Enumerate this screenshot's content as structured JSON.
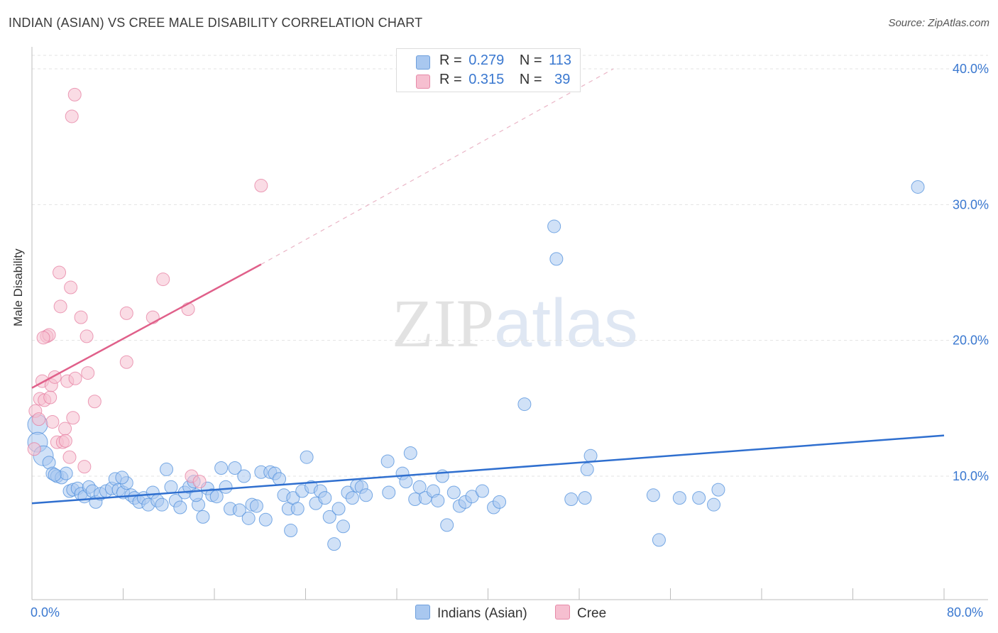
{
  "title": "INDIAN (ASIAN) VS CREE MALE DISABILITY CORRELATION CHART",
  "source": "Source: ZipAtlas.com",
  "watermark": {
    "zip": "ZIP",
    "atlas": "atlas"
  },
  "legend": {
    "rows": [
      {
        "r_label": "R =",
        "r_value": "0.279",
        "n_label": "N =",
        "n_value": "113",
        "color": "#a9c8f0"
      },
      {
        "r_label": "R =",
        "r_value": "0.315",
        "n_label": "N =",
        "n_value": "39",
        "color": "#f6bfd0"
      }
    ]
  },
  "bottom_legend": [
    {
      "label": "Indians (Asian)",
      "color": "#a9c8f0"
    },
    {
      "label": "Cree",
      "color": "#f6bfd0"
    }
  ],
  "x_axis": {
    "min_label": "0.0%",
    "max_label": "80.0%"
  },
  "chart_data": {
    "type": "scatter",
    "title": "INDIAN (ASIAN) VS CREE MALE DISABILITY CORRELATION CHART",
    "xlabel": "",
    "ylabel": "Male Disability",
    "xlim": [
      0,
      80
    ],
    "ylim": [
      0,
      42
    ],
    "y_ticks": [
      10,
      20,
      30,
      40
    ],
    "y_tick_labels": [
      "10.0%",
      "20.0%",
      "30.0%",
      "40.0%"
    ],
    "x_tick_labels": [
      "0.0%",
      "80.0%"
    ],
    "grid": true,
    "series": [
      {
        "name": "Indians (Asian)",
        "color": "#4f8fdc",
        "fill": "#a9c8f0",
        "trend": {
          "x": [
            0,
            80
          ],
          "y": [
            8.0,
            13.0
          ],
          "color": "#2f6fcf"
        },
        "points": [
          [
            0.5,
            13.8
          ],
          [
            0.5,
            12.5
          ],
          [
            1,
            11.5
          ],
          [
            1.5,
            11
          ],
          [
            1.8,
            10.2
          ],
          [
            2.2,
            10
          ],
          [
            2.6,
            9.9
          ],
          [
            3,
            10.2
          ],
          [
            3.3,
            8.9
          ],
          [
            3.6,
            9
          ],
          [
            4,
            9.1
          ],
          [
            4.3,
            8.7
          ],
          [
            4.6,
            8.5
          ],
          [
            5,
            9.2
          ],
          [
            5.3,
            8.9
          ],
          [
            5.6,
            8.1
          ],
          [
            6,
            8.7
          ],
          [
            6.5,
            8.9
          ],
          [
            7,
            9.1
          ],
          [
            7.3,
            9.8
          ],
          [
            7.6,
            9.0
          ],
          [
            8,
            8.8
          ],
          [
            8.3,
            9.5
          ],
          [
            8.7,
            8.6
          ],
          [
            9,
            8.4
          ],
          [
            9.4,
            8.1
          ],
          [
            9.8,
            8.4
          ],
          [
            10.2,
            7.9
          ],
          [
            10.6,
            8.8
          ],
          [
            11,
            8.2
          ],
          [
            11.4,
            7.9
          ],
          [
            11.8,
            10.5
          ],
          [
            12.2,
            9.2
          ],
          [
            12.6,
            8.2
          ],
          [
            13,
            7.7
          ],
          [
            13.4,
            8.8
          ],
          [
            13.8,
            9.2
          ],
          [
            14.2,
            9.6
          ],
          [
            14.6,
            7.9
          ],
          [
            15,
            7.0
          ],
          [
            15.4,
            9.1
          ],
          [
            15.8,
            8.6
          ],
          [
            16.2,
            8.5
          ],
          [
            16.6,
            10.6
          ],
          [
            17,
            9.2
          ],
          [
            17.4,
            7.6
          ],
          [
            17.8,
            10.6
          ],
          [
            18.2,
            7.5
          ],
          [
            18.6,
            10
          ],
          [
            19,
            6.9
          ],
          [
            19.3,
            7.9
          ],
          [
            19.7,
            7.8
          ],
          [
            20.1,
            10.3
          ],
          [
            20.5,
            6.8
          ],
          [
            20.9,
            10.3
          ],
          [
            21.3,
            10.2
          ],
          [
            21.7,
            9.8
          ],
          [
            22.1,
            8.6
          ],
          [
            22.5,
            7.6
          ],
          [
            22.7,
            6.0
          ],
          [
            22.9,
            8.4
          ],
          [
            23.3,
            7.6
          ],
          [
            23.7,
            8.9
          ],
          [
            24.1,
            11.4
          ],
          [
            24.5,
            9.2
          ],
          [
            24.9,
            8.0
          ],
          [
            25.3,
            8.9
          ],
          [
            25.7,
            8.4
          ],
          [
            26.1,
            7.0
          ],
          [
            26.5,
            5.0
          ],
          [
            26.9,
            7.6
          ],
          [
            27.3,
            6.3
          ],
          [
            27.7,
            8.8
          ],
          [
            28.1,
            8.4
          ],
          [
            28.5,
            9.3
          ],
          [
            28.9,
            9.2
          ],
          [
            29.3,
            8.6
          ],
          [
            31.2,
            11.1
          ],
          [
            31.3,
            8.8
          ],
          [
            32.5,
            10.2
          ],
          [
            32.8,
            9.6
          ],
          [
            33.2,
            11.7
          ],
          [
            33.6,
            8.3
          ],
          [
            34.0,
            9.2
          ],
          [
            34.5,
            8.4
          ],
          [
            35.2,
            8.9
          ],
          [
            35.6,
            8.2
          ],
          [
            36.0,
            10
          ],
          [
            36.4,
            6.4
          ],
          [
            37.0,
            8.8
          ],
          [
            37.5,
            7.8
          ],
          [
            38,
            8.1
          ],
          [
            38.6,
            8.5
          ],
          [
            39.5,
            8.9
          ],
          [
            40.5,
            7.7
          ],
          [
            41,
            8.1
          ],
          [
            43.2,
            15.3
          ],
          [
            45.8,
            28.4
          ],
          [
            46,
            26.0
          ],
          [
            47.3,
            8.3
          ],
          [
            48.7,
            10.5
          ],
          [
            49,
            11.5
          ],
          [
            48.5,
            8.4
          ],
          [
            55,
            5.3
          ],
          [
            56.8,
            8.4
          ],
          [
            59.8,
            7.9
          ],
          [
            58.5,
            8.4
          ],
          [
            54.5,
            8.6
          ],
          [
            60.2,
            9.0
          ],
          [
            77.7,
            31.3
          ],
          [
            2.0,
            10.1
          ],
          [
            7.9,
            9.9
          ],
          [
            14.4,
            8.6
          ]
        ],
        "sizes_large": [
          [
            0.5,
            13.8
          ],
          [
            0.5,
            12.5
          ],
          [
            1,
            11.5
          ]
        ]
      },
      {
        "name": "Cree",
        "color": "#e67ea0",
        "fill": "#f6bfd0",
        "trend": {
          "x": [
            0,
            20.1
          ],
          "y": [
            16.5,
            25.6
          ],
          "color": "#e0608a",
          "dashed_extension_to": [
            51,
            40.0
          ]
        },
        "points": [
          [
            0.2,
            12.0
          ],
          [
            0.3,
            14.8
          ],
          [
            0.6,
            14.2
          ],
          [
            0.7,
            15.7
          ],
          [
            0.9,
            17.0
          ],
          [
            1.1,
            15.6
          ],
          [
            1.3,
            20.3
          ],
          [
            1.5,
            20.4
          ],
          [
            1.6,
            15.8
          ],
          [
            1.7,
            16.7
          ],
          [
            1.8,
            14.0
          ],
          [
            2.0,
            17.3
          ],
          [
            2.2,
            12.5
          ],
          [
            2.4,
            25.0
          ],
          [
            2.5,
            22.5
          ],
          [
            2.7,
            12.5
          ],
          [
            2.9,
            13.5
          ],
          [
            2.95,
            12.6
          ],
          [
            3.1,
            17.0
          ],
          [
            3.3,
            11.4
          ],
          [
            3.4,
            23.9
          ],
          [
            3.6,
            14.3
          ],
          [
            3.5,
            36.5
          ],
          [
            3.75,
            38.1
          ],
          [
            3.8,
            17.2
          ],
          [
            4.3,
            21.7
          ],
          [
            4.6,
            10.7
          ],
          [
            4.8,
            20.3
          ],
          [
            4.9,
            17.6
          ],
          [
            5.5,
            15.5
          ],
          [
            8.3,
            22.0
          ],
          [
            8.3,
            18.4
          ],
          [
            10.6,
            21.7
          ],
          [
            11.5,
            24.5
          ],
          [
            13.7,
            22.3
          ],
          [
            14.0,
            10.0
          ],
          [
            14.7,
            9.6
          ],
          [
            20.1,
            31.4
          ],
          [
            1.0,
            20.2
          ]
        ]
      }
    ]
  }
}
